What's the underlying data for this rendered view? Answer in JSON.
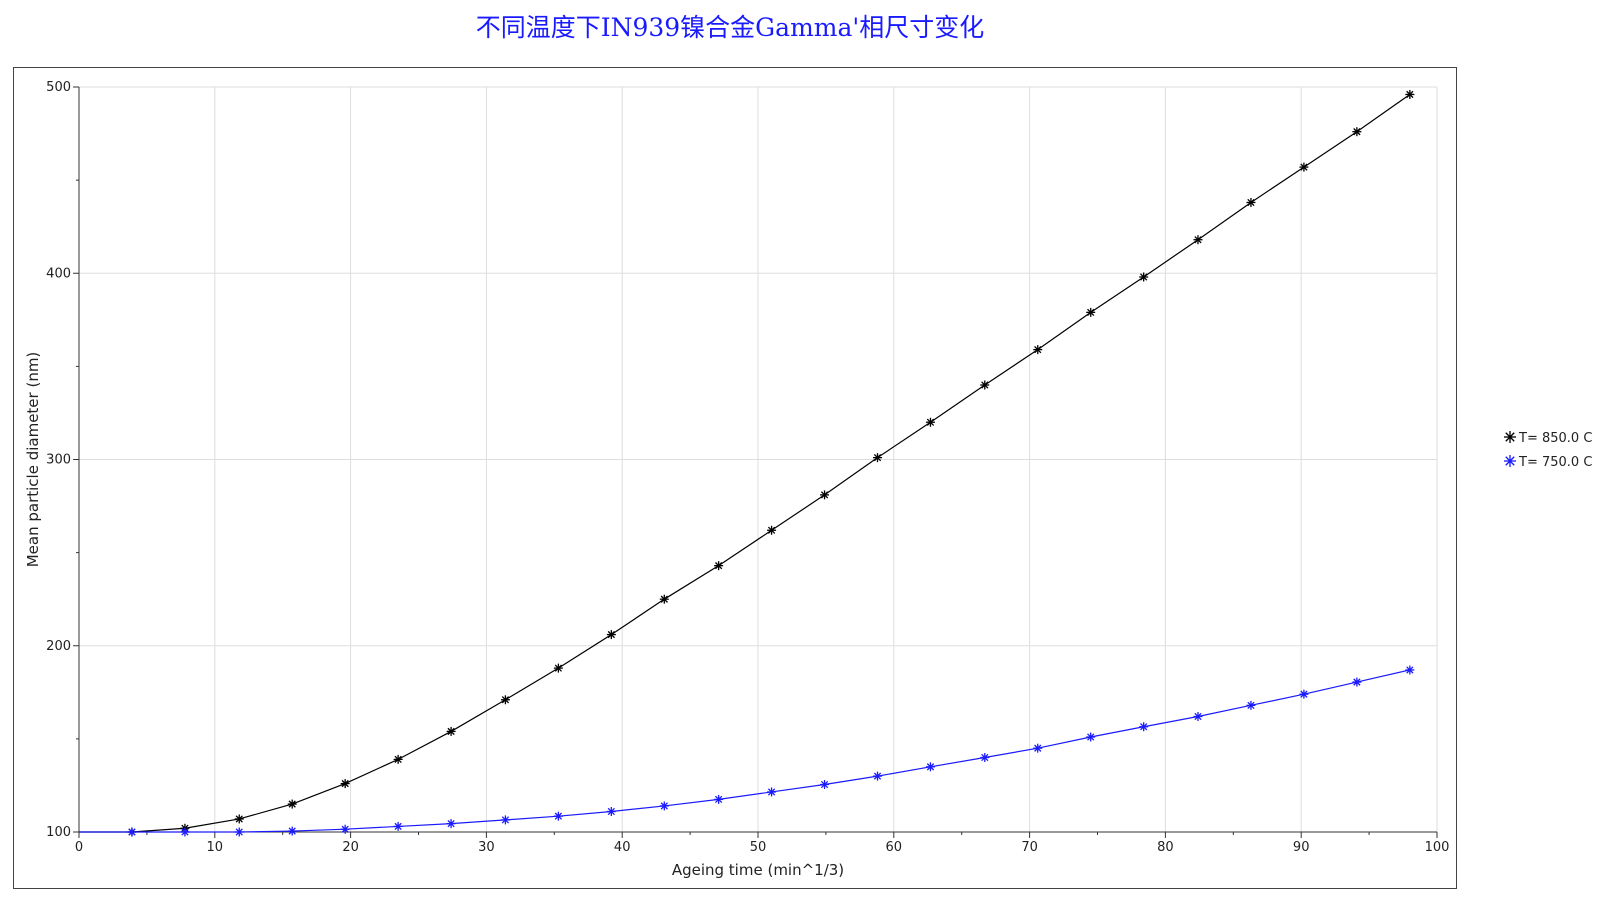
{
  "chart_data": {
    "type": "line",
    "title": "不同温度下IN939镍合金Gamma'相尺寸变化",
    "xlabel": "Ageing time (min^1/3)",
    "ylabel": "Mean particle diameter (nm)",
    "xlim": [
      0,
      100
    ],
    "ylim": [
      100,
      500
    ],
    "xticks": [
      0,
      10,
      20,
      30,
      40,
      50,
      60,
      70,
      80,
      90,
      100
    ],
    "yticks": [
      100,
      200,
      300,
      400,
      500
    ],
    "grid": true,
    "legend_position": "right",
    "series": [
      {
        "name": "T= 850.0 C",
        "color": "#000000",
        "marker": "asterisk",
        "points": [
          [
            0,
            100
          ],
          [
            3.9,
            100
          ],
          [
            7.8,
            102
          ],
          [
            11.8,
            107
          ],
          [
            15.7,
            115
          ],
          [
            19.6,
            126
          ],
          [
            23.5,
            139
          ],
          [
            27.4,
            154
          ],
          [
            31.4,
            171
          ],
          [
            35.3,
            188
          ],
          [
            39.2,
            206
          ],
          [
            43.1,
            225
          ],
          [
            47.1,
            243
          ],
          [
            51.0,
            262
          ],
          [
            54.9,
            281
          ],
          [
            58.8,
            301
          ],
          [
            62.7,
            320
          ],
          [
            66.7,
            340
          ],
          [
            70.6,
            359
          ],
          [
            74.5,
            379
          ],
          [
            78.4,
            398
          ],
          [
            82.4,
            418
          ],
          [
            86.3,
            438
          ],
          [
            90.2,
            457
          ],
          [
            94.1,
            476
          ],
          [
            98.0,
            496
          ]
        ]
      },
      {
        "name": "T= 750.0 C",
        "color": "#1a1aff",
        "marker": "asterisk",
        "points": [
          [
            0,
            100
          ],
          [
            3.9,
            100
          ],
          [
            7.8,
            100
          ],
          [
            11.8,
            100
          ],
          [
            15.7,
            100.5
          ],
          [
            19.6,
            101.5
          ],
          [
            23.5,
            103
          ],
          [
            27.4,
            104.5
          ],
          [
            31.4,
            106.5
          ],
          [
            35.3,
            108.5
          ],
          [
            39.2,
            111
          ],
          [
            43.1,
            114
          ],
          [
            47.1,
            117.5
          ],
          [
            51.0,
            121.5
          ],
          [
            54.9,
            125.5
          ],
          [
            58.8,
            130
          ],
          [
            62.7,
            135
          ],
          [
            66.7,
            140
          ],
          [
            70.6,
            145
          ],
          [
            74.5,
            151
          ],
          [
            78.4,
            156.5
          ],
          [
            82.4,
            162
          ],
          [
            86.3,
            168
          ],
          [
            90.2,
            174
          ],
          [
            94.1,
            180.5
          ],
          [
            98.0,
            187
          ]
        ]
      }
    ]
  }
}
